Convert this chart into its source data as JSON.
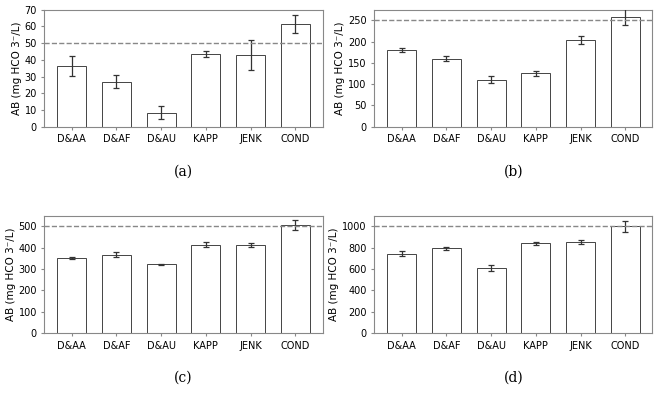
{
  "categories": [
    "D&AA",
    "D&AF",
    "D&AU",
    "KAPP",
    "JENK",
    "COND"
  ],
  "subplots": [
    {
      "label": "(a)",
      "values": [
        36.5,
        27.0,
        8.5,
        43.5,
        43.0,
        61.5
      ],
      "errors": [
        6.0,
        4.0,
        4.0,
        2.0,
        9.0,
        5.5
      ],
      "dashed_line": 50,
      "ylim": [
        0,
        70
      ],
      "yticks": [
        0,
        10,
        20,
        30,
        40,
        50,
        60,
        70
      ],
      "ylabel": "AB (mg HCO 3⁻/L)"
    },
    {
      "label": "(b)",
      "values": [
        180.0,
        160.0,
        110.0,
        125.0,
        204.0,
        258.0
      ],
      "errors": [
        5.0,
        5.0,
        8.0,
        5.0,
        10.0,
        20.0
      ],
      "dashed_line": 250,
      "ylim": [
        0,
        275
      ],
      "yticks": [
        0,
        50,
        100,
        150,
        200,
        250
      ],
      "ylabel": "AB (mg HCO 3⁻/L)"
    },
    {
      "label": "(c)",
      "values": [
        352.0,
        368.0,
        322.0,
        415.0,
        412.0,
        507.0
      ],
      "errors": [
        5.0,
        12.0,
        4.0,
        10.0,
        8.0,
        22.0
      ],
      "dashed_line": 500,
      "ylim": [
        0,
        550
      ],
      "yticks": [
        0,
        100,
        200,
        300,
        400,
        500
      ],
      "ylabel": "AB (mg HCO 3⁻/L)"
    },
    {
      "label": "(d)",
      "values": [
        745.0,
        795.0,
        610.0,
        840.0,
        855.0,
        1000.0
      ],
      "errors": [
        25.0,
        15.0,
        30.0,
        15.0,
        20.0,
        55.0
      ],
      "dashed_line": 1000,
      "ylim": [
        0,
        1100
      ],
      "yticks": [
        0,
        200,
        400,
        600,
        800,
        1000
      ],
      "ylabel": "AB (mg HCO 3⁻/L)"
    }
  ],
  "bar_color": "#ffffff",
  "bar_edgecolor": "#444444",
  "error_color": "#333333",
  "dashed_color": "#888888",
  "label_fontsize": 10,
  "tick_fontsize": 7,
  "ylabel_fontsize": 7.5,
  "background_color": "#ffffff"
}
